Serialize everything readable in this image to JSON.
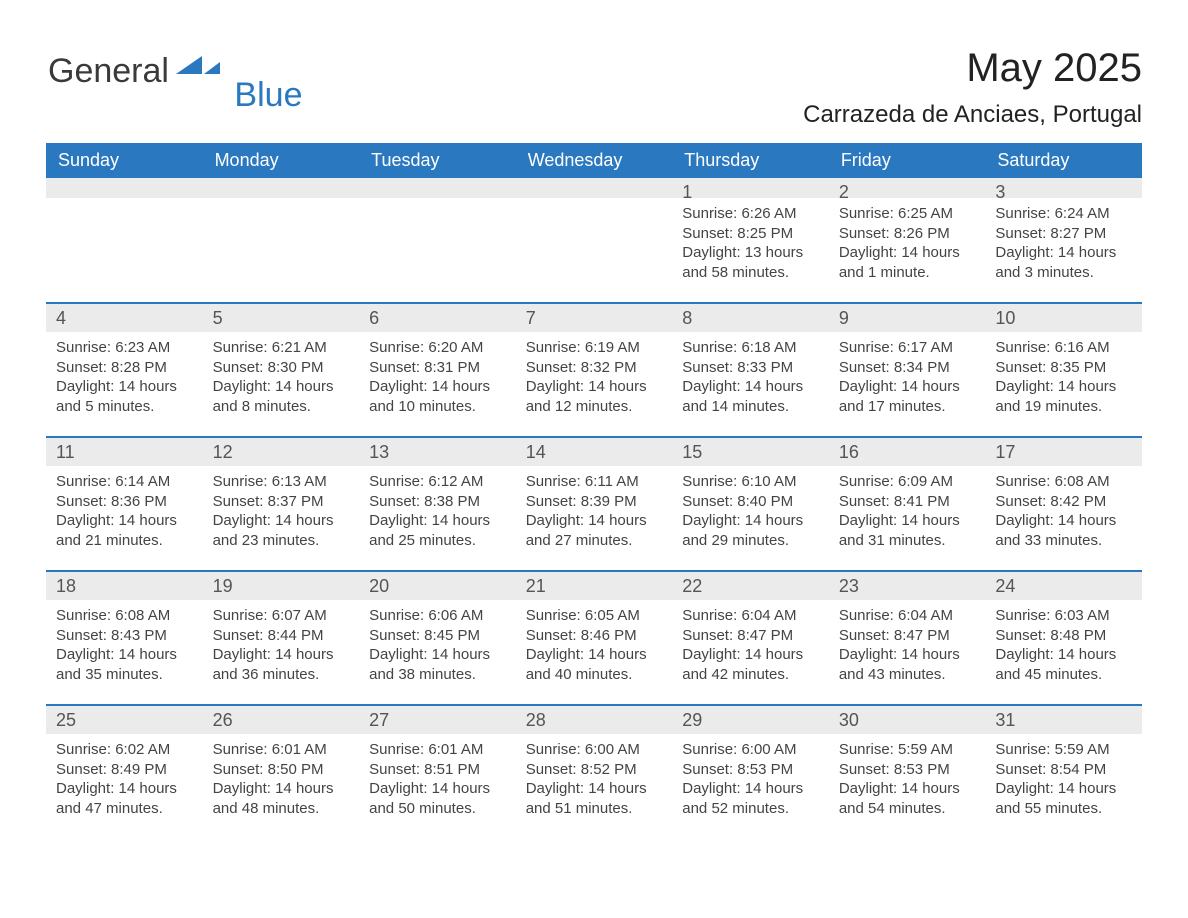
{
  "logo": {
    "word1": "General",
    "word2": "Blue",
    "accent_color": "#2a78c0"
  },
  "title": {
    "month": "May 2025",
    "location": "Carrazeda de Anciaes, Portugal"
  },
  "style": {
    "accent_color": "#2a78c0",
    "header_row_bg": "#ebebeb",
    "day_head_bg": "#ebebeb",
    "background": "#ffffff",
    "text_color": "#222222",
    "body_text_color": "#444444",
    "heading_font_size_pt": 30,
    "subheading_font_size_pt": 18,
    "dayhead_font_size_pt": 14,
    "cell_font_size_pt": 11
  },
  "calendar": {
    "type": "table",
    "columns": [
      "Sunday",
      "Monday",
      "Tuesday",
      "Wednesday",
      "Thursday",
      "Friday",
      "Saturday"
    ],
    "weeks": [
      [
        null,
        null,
        null,
        null,
        {
          "n": "1",
          "sunrise": "Sunrise: 6:26 AM",
          "sunset": "Sunset: 8:25 PM",
          "daylight1": "Daylight: 13 hours",
          "daylight2": "and 58 minutes."
        },
        {
          "n": "2",
          "sunrise": "Sunrise: 6:25 AM",
          "sunset": "Sunset: 8:26 PM",
          "daylight1": "Daylight: 14 hours",
          "daylight2": "and 1 minute."
        },
        {
          "n": "3",
          "sunrise": "Sunrise: 6:24 AM",
          "sunset": "Sunset: 8:27 PM",
          "daylight1": "Daylight: 14 hours",
          "daylight2": "and 3 minutes."
        }
      ],
      [
        {
          "n": "4",
          "sunrise": "Sunrise: 6:23 AM",
          "sunset": "Sunset: 8:28 PM",
          "daylight1": "Daylight: 14 hours",
          "daylight2": "and 5 minutes."
        },
        {
          "n": "5",
          "sunrise": "Sunrise: 6:21 AM",
          "sunset": "Sunset: 8:30 PM",
          "daylight1": "Daylight: 14 hours",
          "daylight2": "and 8 minutes."
        },
        {
          "n": "6",
          "sunrise": "Sunrise: 6:20 AM",
          "sunset": "Sunset: 8:31 PM",
          "daylight1": "Daylight: 14 hours",
          "daylight2": "and 10 minutes."
        },
        {
          "n": "7",
          "sunrise": "Sunrise: 6:19 AM",
          "sunset": "Sunset: 8:32 PM",
          "daylight1": "Daylight: 14 hours",
          "daylight2": "and 12 minutes."
        },
        {
          "n": "8",
          "sunrise": "Sunrise: 6:18 AM",
          "sunset": "Sunset: 8:33 PM",
          "daylight1": "Daylight: 14 hours",
          "daylight2": "and 14 minutes."
        },
        {
          "n": "9",
          "sunrise": "Sunrise: 6:17 AM",
          "sunset": "Sunset: 8:34 PM",
          "daylight1": "Daylight: 14 hours",
          "daylight2": "and 17 minutes."
        },
        {
          "n": "10",
          "sunrise": "Sunrise: 6:16 AM",
          "sunset": "Sunset: 8:35 PM",
          "daylight1": "Daylight: 14 hours",
          "daylight2": "and 19 minutes."
        }
      ],
      [
        {
          "n": "11",
          "sunrise": "Sunrise: 6:14 AM",
          "sunset": "Sunset: 8:36 PM",
          "daylight1": "Daylight: 14 hours",
          "daylight2": "and 21 minutes."
        },
        {
          "n": "12",
          "sunrise": "Sunrise: 6:13 AM",
          "sunset": "Sunset: 8:37 PM",
          "daylight1": "Daylight: 14 hours",
          "daylight2": "and 23 minutes."
        },
        {
          "n": "13",
          "sunrise": "Sunrise: 6:12 AM",
          "sunset": "Sunset: 8:38 PM",
          "daylight1": "Daylight: 14 hours",
          "daylight2": "and 25 minutes."
        },
        {
          "n": "14",
          "sunrise": "Sunrise: 6:11 AM",
          "sunset": "Sunset: 8:39 PM",
          "daylight1": "Daylight: 14 hours",
          "daylight2": "and 27 minutes."
        },
        {
          "n": "15",
          "sunrise": "Sunrise: 6:10 AM",
          "sunset": "Sunset: 8:40 PM",
          "daylight1": "Daylight: 14 hours",
          "daylight2": "and 29 minutes."
        },
        {
          "n": "16",
          "sunrise": "Sunrise: 6:09 AM",
          "sunset": "Sunset: 8:41 PM",
          "daylight1": "Daylight: 14 hours",
          "daylight2": "and 31 minutes."
        },
        {
          "n": "17",
          "sunrise": "Sunrise: 6:08 AM",
          "sunset": "Sunset: 8:42 PM",
          "daylight1": "Daylight: 14 hours",
          "daylight2": "and 33 minutes."
        }
      ],
      [
        {
          "n": "18",
          "sunrise": "Sunrise: 6:08 AM",
          "sunset": "Sunset: 8:43 PM",
          "daylight1": "Daylight: 14 hours",
          "daylight2": "and 35 minutes."
        },
        {
          "n": "19",
          "sunrise": "Sunrise: 6:07 AM",
          "sunset": "Sunset: 8:44 PM",
          "daylight1": "Daylight: 14 hours",
          "daylight2": "and 36 minutes."
        },
        {
          "n": "20",
          "sunrise": "Sunrise: 6:06 AM",
          "sunset": "Sunset: 8:45 PM",
          "daylight1": "Daylight: 14 hours",
          "daylight2": "and 38 minutes."
        },
        {
          "n": "21",
          "sunrise": "Sunrise: 6:05 AM",
          "sunset": "Sunset: 8:46 PM",
          "daylight1": "Daylight: 14 hours",
          "daylight2": "and 40 minutes."
        },
        {
          "n": "22",
          "sunrise": "Sunrise: 6:04 AM",
          "sunset": "Sunset: 8:47 PM",
          "daylight1": "Daylight: 14 hours",
          "daylight2": "and 42 minutes."
        },
        {
          "n": "23",
          "sunrise": "Sunrise: 6:04 AM",
          "sunset": "Sunset: 8:47 PM",
          "daylight1": "Daylight: 14 hours",
          "daylight2": "and 43 minutes."
        },
        {
          "n": "24",
          "sunrise": "Sunrise: 6:03 AM",
          "sunset": "Sunset: 8:48 PM",
          "daylight1": "Daylight: 14 hours",
          "daylight2": "and 45 minutes."
        }
      ],
      [
        {
          "n": "25",
          "sunrise": "Sunrise: 6:02 AM",
          "sunset": "Sunset: 8:49 PM",
          "daylight1": "Daylight: 14 hours",
          "daylight2": "and 47 minutes."
        },
        {
          "n": "26",
          "sunrise": "Sunrise: 6:01 AM",
          "sunset": "Sunset: 8:50 PM",
          "daylight1": "Daylight: 14 hours",
          "daylight2": "and 48 minutes."
        },
        {
          "n": "27",
          "sunrise": "Sunrise: 6:01 AM",
          "sunset": "Sunset: 8:51 PM",
          "daylight1": "Daylight: 14 hours",
          "daylight2": "and 50 minutes."
        },
        {
          "n": "28",
          "sunrise": "Sunrise: 6:00 AM",
          "sunset": "Sunset: 8:52 PM",
          "daylight1": "Daylight: 14 hours",
          "daylight2": "and 51 minutes."
        },
        {
          "n": "29",
          "sunrise": "Sunrise: 6:00 AM",
          "sunset": "Sunset: 8:53 PM",
          "daylight1": "Daylight: 14 hours",
          "daylight2": "and 52 minutes."
        },
        {
          "n": "30",
          "sunrise": "Sunrise: 5:59 AM",
          "sunset": "Sunset: 8:53 PM",
          "daylight1": "Daylight: 14 hours",
          "daylight2": "and 54 minutes."
        },
        {
          "n": "31",
          "sunrise": "Sunrise: 5:59 AM",
          "sunset": "Sunset: 8:54 PM",
          "daylight1": "Daylight: 14 hours",
          "daylight2": "and 55 minutes."
        }
      ]
    ]
  }
}
